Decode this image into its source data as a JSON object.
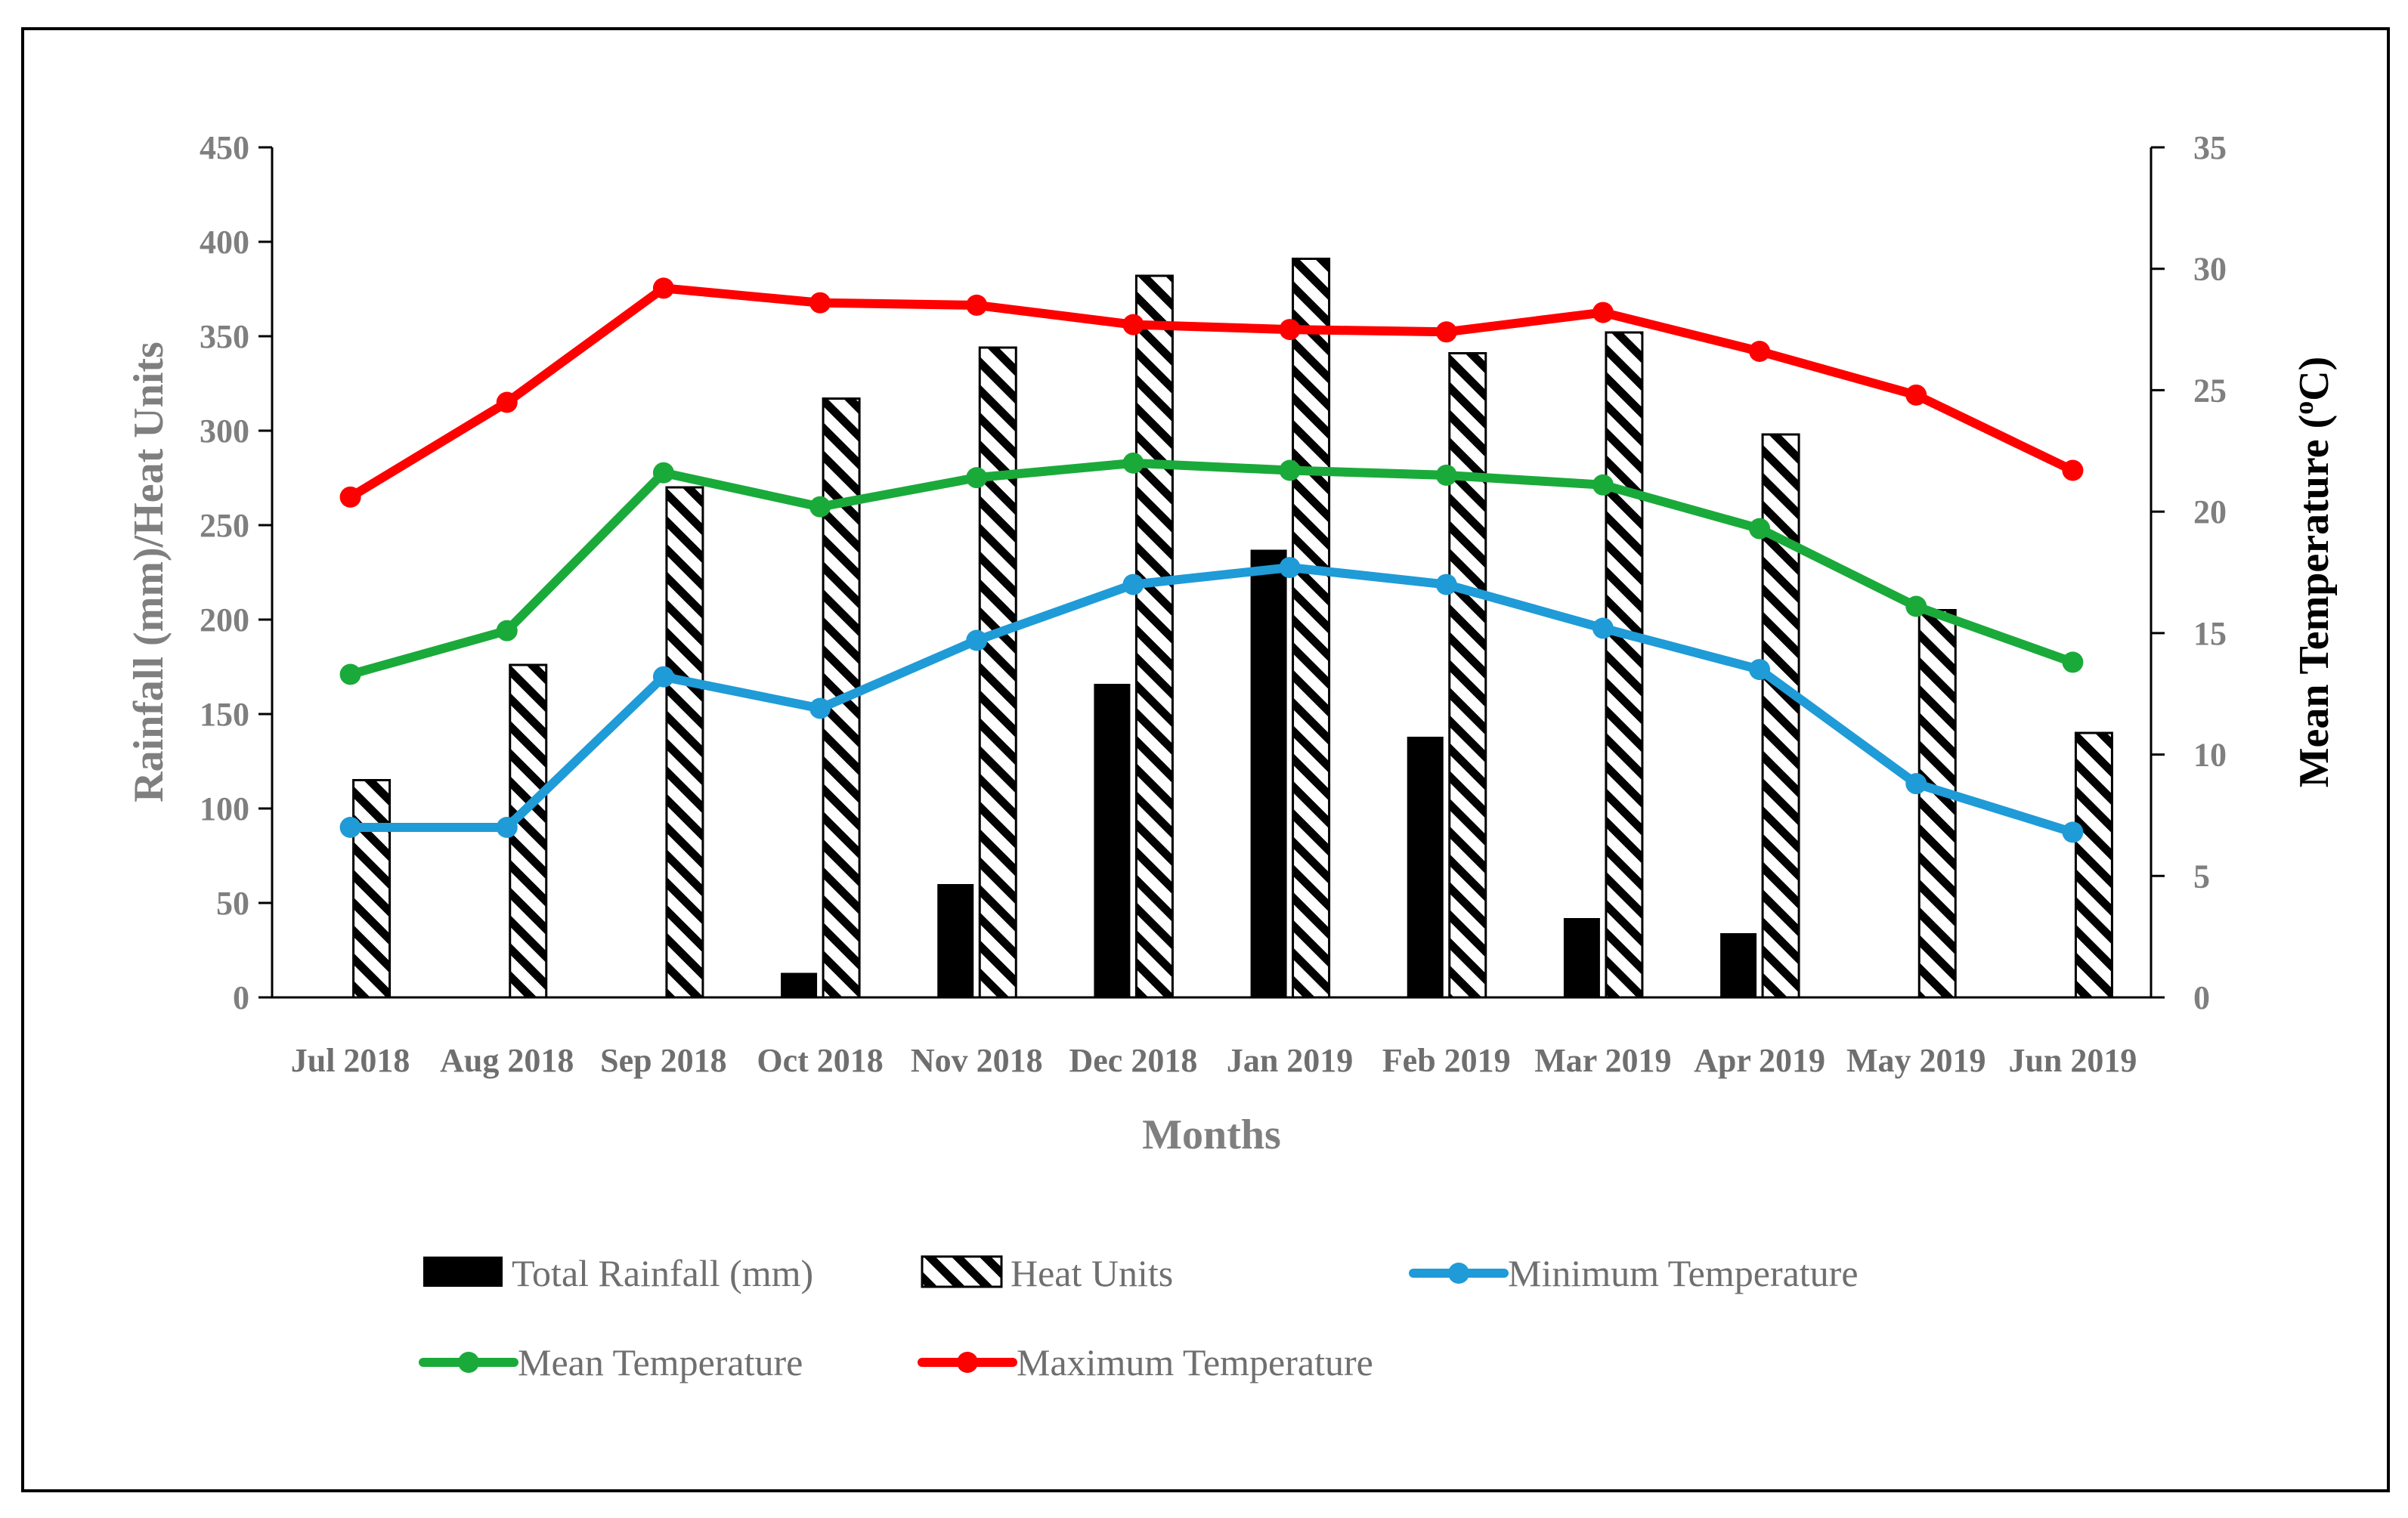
{
  "chart_data": {
    "type": "bar",
    "categories": [
      "Jul 2018",
      "Aug 2018",
      "Sep 2018",
      "Oct 2018",
      "Nov 2018",
      "Dec 2018",
      "Jan 2019",
      "Feb 2019",
      "Mar 2019",
      "Apr 2019",
      "May 2019",
      "Jun 2019"
    ],
    "xlabel": "Months",
    "ylabel": "Rainfall (mm)/Heat Units",
    "y2label": "Mean Temperature (°C)",
    "y2label_main": "Mean Temperature (",
    "y2label_sup": "o",
    "y2label_end": "C)",
    "ylim": [
      0,
      450
    ],
    "y2lim": [
      0,
      35
    ],
    "yticks": [
      "0",
      "50",
      "100",
      "150",
      "200",
      "250",
      "300",
      "350",
      "400",
      "450"
    ],
    "y2ticks": [
      "0",
      "5",
      "10",
      "15",
      "20",
      "25",
      "30",
      "35"
    ],
    "legend_position": "bottom",
    "series": [
      {
        "name": "Total Rainfall (mm)",
        "kind": "bar",
        "axis": "left",
        "color": "#000000",
        "values": [
          0,
          0,
          0,
          13,
          60,
          166,
          237,
          138,
          42,
          34,
          0,
          0
        ]
      },
      {
        "name": "Heat Units",
        "kind": "bar-hatched",
        "axis": "left",
        "color": "#000000",
        "values": [
          115,
          176,
          270,
          317,
          344,
          382,
          391,
          341,
          352,
          298,
          205,
          140
        ]
      },
      {
        "name": "Minimum Temperature",
        "kind": "line",
        "axis": "right",
        "color": "#1f9bd7",
        "values": [
          7.0,
          7.0,
          13.2,
          11.9,
          14.7,
          17.0,
          17.7,
          17.0,
          15.2,
          13.5,
          8.8,
          6.8
        ]
      },
      {
        "name": "Mean Temperature",
        "kind": "line",
        "axis": "right",
        "color": "#1aaa3a",
        "values": [
          13.3,
          15.1,
          21.6,
          20.2,
          21.4,
          22.0,
          21.7,
          21.5,
          21.1,
          19.3,
          16.1,
          13.8
        ]
      },
      {
        "name": "Maximum Temperature",
        "kind": "line",
        "axis": "right",
        "color": "#ff0000",
        "values": [
          20.6,
          24.5,
          29.2,
          28.6,
          28.5,
          27.7,
          27.5,
          27.4,
          28.2,
          26.6,
          24.8,
          21.7
        ]
      }
    ]
  }
}
